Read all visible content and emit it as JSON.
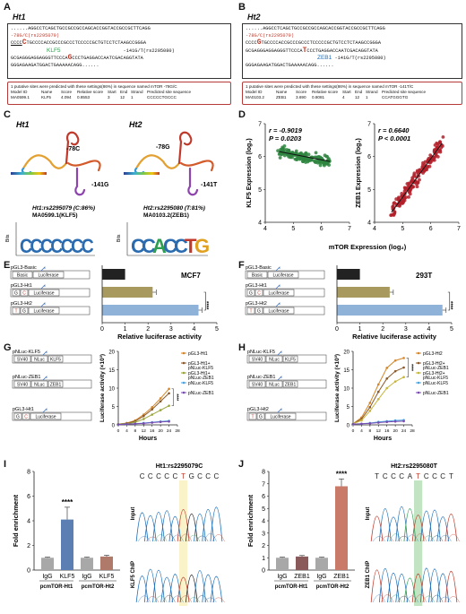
{
  "panels": {
    "A": {
      "label": "A",
      "title": "Ht1",
      "seq1": "......AGGCCTCAGCTGCCGCCGCCAGCACCGGTACCGCCGCTTCAGG",
      "snp": "-78G/C(rs2295079)",
      "seq2_a": "CCCC",
      "seq2_snp": "C",
      "seq2_b": "TGCCCCACCGCCCGCCCTCCCCCGCTGTCCTCTAAGCCGGGA",
      "tf": "KLF5",
      "seq3_a": "GCGAGGGAGGAGGGTTCCCA",
      "seq3_snp": "G",
      "seq3_b": "CCCTGAGGACCAATCGACAGGTATA",
      "snp2": "-141G/T(rs2295080)",
      "seq4": "GGGAGAAGATGGACTGAAAAACAGG......",
      "box_line1": "1 putative sites were predicted with these settings(86%) in sequence named mTOR -78G/C",
      "box_head": [
        "Model ID",
        "Name",
        "Score",
        "Relative score",
        "Start",
        "End",
        "Strand",
        "Predicted site sequence"
      ],
      "box_row": [
        "MA0599.1",
        "KLF5",
        "4.094",
        "0.8553",
        "3",
        "12",
        "1",
        "CCCCCTGCCC"
      ]
    },
    "B": {
      "label": "B",
      "title": "Ht2",
      "seq1": "......AGGCCTCAGCTGCCGCCGCCAGCACCGGTACCGCCGCTTCAGG",
      "snp": "-78G/C(rs2295079)",
      "seq2_a": "CCCC",
      "seq2_snp": "G",
      "seq2_b": "TGCCCCACCGCCCGCCCTCCCCCGCTGTCCTCTAAGCCGGGA",
      "tf": "ZEB1",
      "seq3_a": "GCGAGGGAGGAGGGTTCCCA",
      "seq3_snp": "T",
      "seq3_b": "CCCTGAGGACCAATCGACAGGTATA",
      "snp2": "-141G/T(rs2295080)",
      "seq4": "GGGAGAAGATGGACTGAAAAACAGG......",
      "box_line1": "1 putative sites were predicted with these settings(86%) in sequence named mTOR -141T/C",
      "box_head": [
        "Model ID",
        "Name",
        "Score",
        "Relative score",
        "Start",
        "End",
        "Strand",
        "Predicted site sequence"
      ],
      "box_row": [
        "MA0103.2",
        "ZEB1",
        "3.690",
        "0.8081",
        "4",
        "12",
        "1",
        "CCATGGGTG"
      ]
    },
    "C": {
      "label": "C",
      "ht1": "Ht1",
      "ht2": "Ht2",
      "ann1a": "-78C",
      "ann1b": "-141G",
      "ann2a": "-78G",
      "ann2b": "-141T",
      "motif1_a": "Ht1:rs2295079 (C:86%)",
      "motif1_b": "MA0599.1(KLF5)",
      "motif2_a": "Ht2:rs2295080 (T:81%)",
      "motif2_b": "MA0103.2(ZEB1)",
      "bits": "Bits",
      "logo1": "CCCCCCC",
      "logo2": "CCACCTG"
    },
    "D": {
      "label": "D",
      "left": {
        "r": "r = -0.9019",
        "p": "P = 0.0203",
        "ylabel": "KLF5 Expression (log₂)"
      },
      "right": {
        "r": "r = 0.6640",
        "p": "P < 0.0001",
        "ylabel": "ZEB1 Expression (log₂)"
      },
      "xlabel": "mTOR Expression (log₂)"
    },
    "E": {
      "label": "E",
      "cell": "MCF7",
      "xlabel": "Relative luciferase activity",
      "constructs": [
        "pGL3-Basic",
        "pGL3-Ht1",
        "pGL3-Ht2"
      ],
      "stars": "****"
    },
    "F": {
      "label": "F",
      "cell": "293T",
      "xlabel": "Relative luciferase activity",
      "constructs": [
        "pGL3-Basic",
        "pGL3-Ht1",
        "pGL3-Ht2"
      ],
      "stars": "****"
    },
    "G": {
      "label": "G",
      "constructs": [
        "pNLuc-KLF5",
        "pNLuc-ZEB1",
        "pGL3-Ht1"
      ],
      "ylabel": "Luciferase activity (×10³)",
      "xlabel": "Hours",
      "stars": "****"
    },
    "H": {
      "label": "H",
      "constructs": [
        "pNLuc-KLF5",
        "pNLuc-ZEB1",
        "pGL3-Ht2"
      ],
      "ylabel": "Luciferase activity (×10³)",
      "xlabel": "Hours",
      "stars": "****"
    },
    "I": {
      "label": "I",
      "ylabel": "Fold enrichment",
      "groups": [
        "pcmTOR-Ht1",
        "pcmTOR-Ht2"
      ],
      "stars": "****",
      "chrom_title": "Ht1:rs2295079C",
      "chrom_seq": "CCCCCTGCCC",
      "input": "Input",
      "chip": "KLF5 ChIP"
    },
    "J": {
      "label": "J",
      "ylabel": "Fold enrichment",
      "groups": [
        "pcmTOR-Ht1",
        "pcmTOR-Ht2"
      ],
      "stars": "****",
      "chrom_title": "Ht2:rs2295080T",
      "chrom_seq": "TCCCATCCCT",
      "input": "Input",
      "chip": "ZEB1 ChIP"
    }
  },
  "chart_data": [
    {
      "type": "scatter",
      "panel": "D-left",
      "xlabel": "mTOR Expression (log₂)",
      "ylabel": "KLF5 Expression (log₂)",
      "xlim": [
        4,
        7
      ],
      "ylim": [
        4,
        7
      ],
      "x_ticks": [
        4,
        5,
        6,
        7
      ],
      "y_ticks": [
        4,
        5,
        6,
        7
      ],
      "color": "#2e8540",
      "fit": [
        [
          4.5,
          6.15
        ],
        [
          6.3,
          5.85
        ]
      ]
    },
    {
      "type": "scatter",
      "panel": "D-right",
      "xlabel": "mTOR Expression (log₂)",
      "ylabel": "ZEB1 Expression (log₂)",
      "xlim": [
        4,
        7
      ],
      "ylim": [
        4,
        7
      ],
      "x_ticks": [
        4,
        5,
        6,
        7
      ],
      "y_ticks": [
        4,
        5,
        6,
        7
      ],
      "color": "#b3202a",
      "fit": [
        [
          4.6,
          4.3
        ],
        [
          6.4,
          6.4
        ]
      ]
    },
    {
      "type": "bar",
      "panel": "E",
      "categories": [
        "pGL3-Basic",
        "pGL3-Ht1",
        "pGL3-Ht2"
      ],
      "values": [
        1.0,
        2.2,
        4.2
      ],
      "colors": [
        "#222222",
        "#a89a5e",
        "#8fb2d8"
      ],
      "xlim": [
        0,
        5
      ],
      "x_ticks": [
        0,
        1,
        2,
        3,
        4,
        5
      ]
    },
    {
      "type": "bar",
      "panel": "F",
      "categories": [
        "pGL3-Basic",
        "pGL3-Ht1",
        "pGL3-Ht2"
      ],
      "values": [
        1.0,
        2.3,
        4.6
      ],
      "colors": [
        "#222222",
        "#a89a5e",
        "#8fb2d8"
      ],
      "xlim": [
        0,
        5
      ],
      "x_ticks": [
        0,
        1,
        2,
        3,
        4,
        5
      ]
    },
    {
      "type": "line",
      "panel": "G",
      "x": [
        0,
        4,
        8,
        12,
        16,
        20,
        24
      ],
      "xlim": [
        0,
        28
      ],
      "ylim": [
        0,
        20
      ],
      "x_ticks": [
        0,
        4,
        8,
        12,
        16,
        20,
        24,
        28
      ],
      "y_ticks": [
        0,
        5,
        10,
        15,
        20
      ],
      "series": [
        {
          "name": "pGL3-Ht1",
          "color": "#d4862a",
          "values": [
            0.2,
            0.5,
            1.2,
            2.8,
            4.8,
            7.2,
            9.8
          ]
        },
        {
          "name": "pGL3-Ht1+ pNLuc-KLF5",
          "color": "#8a5a2a",
          "values": [
            0.2,
            0.4,
            1.0,
            2.4,
            4.2,
            6.4,
            8.6
          ]
        },
        {
          "name": "pGL3-Ht1+ pNLuc-ZEB1",
          "color": "#9aa53a",
          "values": [
            0.2,
            0.3,
            0.7,
            1.6,
            2.8,
            4.0,
            5.2
          ]
        },
        {
          "name": "pNLuc-KLF5",
          "color": "#4aa3df",
          "values": [
            0.1,
            0.2,
            0.3,
            0.5,
            0.7,
            0.9,
            1.1
          ]
        },
        {
          "name": "pNLuc-ZEB1",
          "color": "#7a4bb0",
          "values": [
            0.1,
            0.2,
            0.3,
            0.4,
            0.6,
            0.8,
            0.9
          ]
        }
      ]
    },
    {
      "type": "line",
      "panel": "H",
      "x": [
        0,
        4,
        8,
        12,
        16,
        20,
        24
      ],
      "xlim": [
        0,
        28
      ],
      "ylim": [
        0,
        20
      ],
      "x_ticks": [
        0,
        4,
        8,
        12,
        16,
        20,
        24,
        28
      ],
      "y_ticks": [
        0,
        5,
        10,
        15,
        20
      ],
      "series": [
        {
          "name": "pGL3-Ht2",
          "color": "#d4862a",
          "values": [
            0.3,
            2.0,
            6.0,
            11.0,
            15.5,
            17.5,
            18.2
          ]
        },
        {
          "name": "pGL3-Ht2+ pNLuc-ZEB1",
          "color": "#8a5a2a",
          "values": [
            0.3,
            1.6,
            4.8,
            9.0,
            12.6,
            14.6,
            15.6
          ]
        },
        {
          "name": "pGL3-Ht2+ pNLuc-KLF5",
          "color": "#c7b53a",
          "values": [
            0.3,
            1.2,
            3.8,
            7.0,
            10.0,
            11.8,
            13.0
          ]
        },
        {
          "name": "pNLuc-KLF5",
          "color": "#4aa3df",
          "values": [
            0.2,
            0.3,
            0.5,
            0.8,
            1.0,
            1.2,
            1.3
          ]
        },
        {
          "name": "pNLuc-ZEB1",
          "color": "#7a4bb0",
          "values": [
            0.2,
            0.3,
            0.4,
            0.6,
            0.8,
            0.9,
            1.0
          ]
        }
      ]
    },
    {
      "type": "bar",
      "panel": "I",
      "categories": [
        "IgG",
        "KLF5",
        "IgG",
        "KLF5"
      ],
      "values": [
        1.0,
        4.1,
        1.0,
        1.1
      ],
      "errors": [
        0.05,
        1.0,
        0.05,
        0.1
      ],
      "colors": [
        "#a8a8a8",
        "#5b7fb3",
        "#a8a8a8",
        "#b07a6a"
      ],
      "ylim": [
        0,
        8
      ],
      "y_ticks": [
        0,
        2,
        4,
        6,
        8
      ]
    },
    {
      "type": "bar",
      "panel": "J",
      "categories": [
        "IgG",
        "ZEB1",
        "IgG",
        "ZEB1"
      ],
      "values": [
        1.0,
        1.1,
        1.0,
        6.8
      ],
      "errors": [
        0.05,
        0.08,
        0.05,
        0.6
      ],
      "colors": [
        "#a8a8a8",
        "#8a5a5a",
        "#a8a8a8",
        "#c97a68"
      ],
      "ylim": [
        0,
        8
      ],
      "y_ticks": [
        0,
        1,
        2,
        3,
        4,
        5,
        6,
        7,
        8
      ]
    }
  ]
}
